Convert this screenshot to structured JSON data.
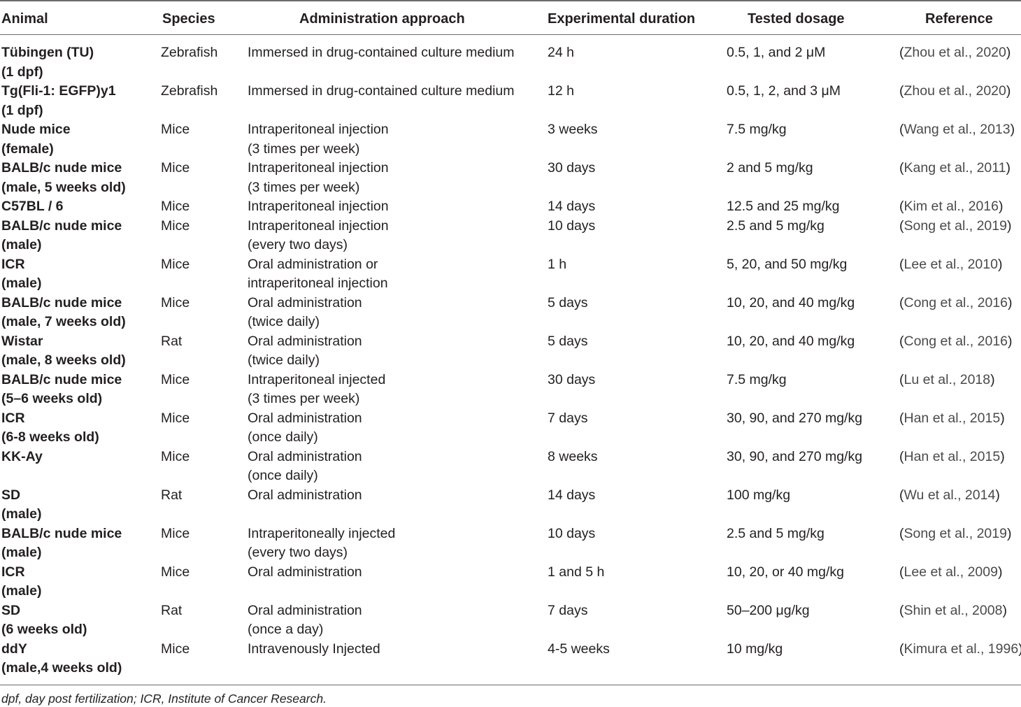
{
  "headers": {
    "animal": "Animal",
    "species": "Species",
    "admin": "Administration approach",
    "duration": "Experimental duration",
    "dosage": "Tested dosage",
    "reference": "Reference"
  },
  "rows": [
    {
      "animal": [
        "Tübingen (TU)",
        "(1 dpf)"
      ],
      "species": "Zebrafish",
      "admin": [
        "Immersed in drug-contained culture medium"
      ],
      "duration": "24 h",
      "dosage": "0.5, 1, and 2 μM",
      "reference": "Zhou et al., 2020"
    },
    {
      "animal": [
        "Tg(Fli-1: EGFP)y1",
        "(1 dpf)"
      ],
      "species": "Zebrafish",
      "admin": [
        "Immersed in drug-contained culture medium"
      ],
      "duration": "12 h",
      "dosage": "0.5, 1, 2, and 3 μM",
      "reference": "Zhou et al., 2020"
    },
    {
      "animal": [
        "Nude mice",
        "(female)"
      ],
      "species": "Mice",
      "admin": [
        "Intraperitoneal injection",
        "(3 times per week)"
      ],
      "duration": "3 weeks",
      "dosage": "7.5 mg/kg",
      "reference": "Wang et al., 2013"
    },
    {
      "animal": [
        "BALB/c nude mice",
        "(male, 5 weeks old)"
      ],
      "species": "Mice",
      "admin": [
        "Intraperitoneal injection",
        "(3 times per week)"
      ],
      "duration": "30 days",
      "dosage": "2 and 5 mg/kg",
      "reference": "Kang et al., 2011"
    },
    {
      "animal": [
        "C57BL / 6"
      ],
      "species": "Mice",
      "admin": [
        "Intraperitoneal injection"
      ],
      "duration": "14 days",
      "dosage": "12.5 and 25 mg/kg",
      "reference": "Kim et al., 2016"
    },
    {
      "animal": [
        "BALB/c nude mice",
        "(male)"
      ],
      "species": "Mice",
      "admin": [
        "Intraperitoneal injection",
        "(every two days)"
      ],
      "duration": "10 days",
      "dosage": "2.5 and 5 mg/kg",
      "reference": "Song et al., 2019"
    },
    {
      "animal": [
        "ICR",
        "(male)"
      ],
      "species": "Mice",
      "admin": [
        "Oral administration or",
        "intraperitoneal injection"
      ],
      "duration": "1 h",
      "dosage": "5, 20, and 50 mg/kg",
      "reference": "Lee et al., 2010"
    },
    {
      "animal": [
        "BALB/c nude mice",
        "(male, 7 weeks old)"
      ],
      "species": "Mice",
      "admin": [
        "Oral administration",
        "(twice daily)"
      ],
      "duration": "5 days",
      "dosage": "10, 20, and 40 mg/kg",
      "reference": "Cong et al., 2016"
    },
    {
      "animal": [
        "Wistar",
        "(male, 8 weeks old)"
      ],
      "species": "Rat",
      "admin": [
        "Oral administration",
        "(twice daily)"
      ],
      "duration": "5 days",
      "dosage": "10, 20, and 40 mg/kg",
      "reference": "Cong et al., 2016"
    },
    {
      "animal": [
        "BALB/c nude mice",
        "(5–6 weeks old)"
      ],
      "species": "Mice",
      "admin": [
        "Intraperitoneal injected",
        "(3 times per week)"
      ],
      "duration": "30 days",
      "dosage": "7.5 mg/kg",
      "reference": "Lu et al., 2018"
    },
    {
      "animal": [
        "ICR",
        "(6-8 weeks old)"
      ],
      "species": "Mice",
      "admin": [
        "Oral administration",
        "(once daily)"
      ],
      "duration": "7 days",
      "dosage": "30, 90, and 270 mg/kg",
      "reference": "Han et al., 2015"
    },
    {
      "animal": [
        "KK-Ay"
      ],
      "species": "Mice",
      "admin": [
        "Oral administration",
        "(once daily)"
      ],
      "duration": "8 weeks",
      "dosage": "30, 90, and 270 mg/kg",
      "reference": "Han et al., 2015"
    },
    {
      "animal": [
        "SD",
        "(male)"
      ],
      "species": "Rat",
      "admin": [
        "Oral administration"
      ],
      "duration": "14 days",
      "dosage": "100 mg/kg",
      "reference": "Wu et al., 2014"
    },
    {
      "animal": [
        "BALB/c nude mice",
        "(male)"
      ],
      "species": "Mice",
      "admin": [
        "Intraperitoneally injected",
        "(every two days)"
      ],
      "duration": "10 days",
      "dosage": "2.5 and 5 mg/kg",
      "reference": "Song et al., 2019"
    },
    {
      "animal": [
        "ICR",
        "(male)"
      ],
      "species": "Mice",
      "admin": [
        "Oral administration"
      ],
      "duration": "1 and 5 h",
      "dosage": "10, 20, or 40 mg/kg",
      "reference": "Lee et al., 2009"
    },
    {
      "animal": [
        "SD",
        "(6 weeks old)"
      ],
      "species": "Rat",
      "admin": [
        "Oral administration",
        "(once a day)"
      ],
      "duration": "7 days",
      "dosage": "50–200 μg/kg",
      "reference": "Shin et al., 2008"
    },
    {
      "animal": [
        "ddY",
        "(male,4 weeks old)"
      ],
      "species": "Mice",
      "admin": [
        "Intravenously Injected"
      ],
      "duration": "4-5 weeks",
      "dosage": "10 mg/kg",
      "reference": "Kimura et al., 1996"
    }
  ],
  "footnote": "dpf, day post fertilization; ICR, Institute of Cancer Research."
}
